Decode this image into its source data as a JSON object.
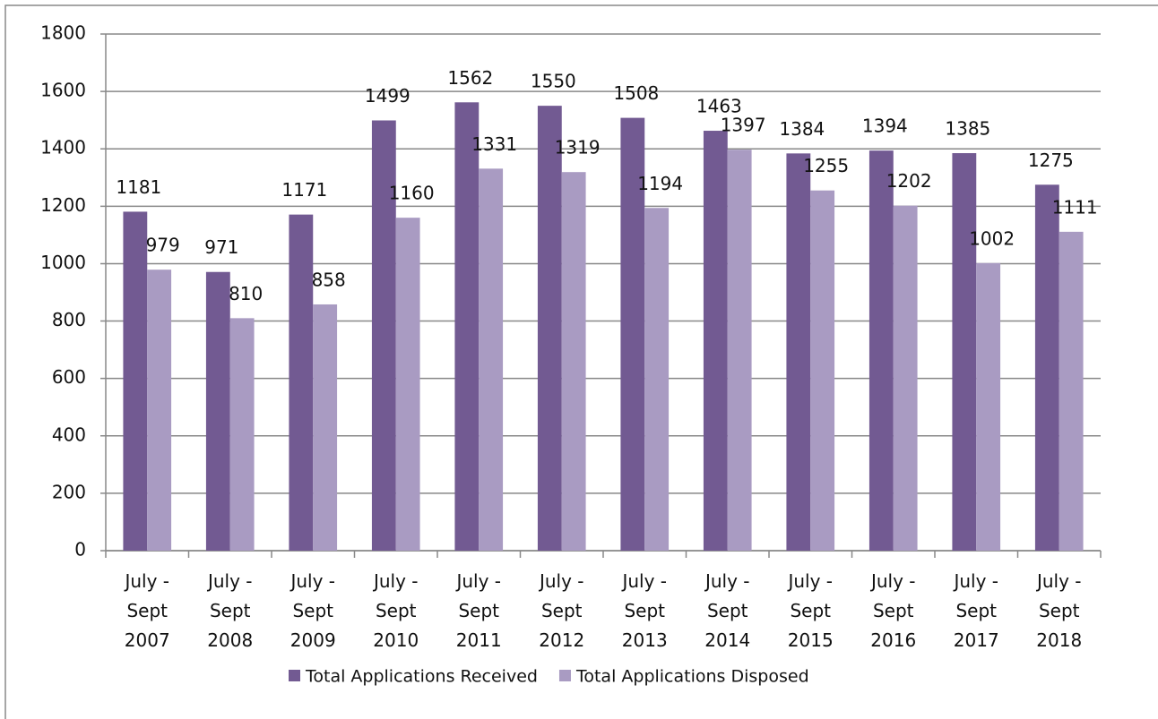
{
  "chart_data": {
    "type": "bar",
    "categories": [
      "July - Sept 2007",
      "July - Sept 2008",
      "July - Sept 2009",
      "July - Sept 2010",
      "July - Sept 2011",
      "July - Sept 2012",
      "July - Sept 2013",
      "July - Sept 2014",
      "July - Sept 2015",
      "July - Sept 2016",
      "July - Sept 2017",
      "July - Sept 2018"
    ],
    "series": [
      {
        "name": "Total Applications Received",
        "color": "#725a92",
        "values": [
          1181,
          971,
          1171,
          1499,
          1562,
          1550,
          1508,
          1463,
          1384,
          1394,
          1385,
          1275
        ]
      },
      {
        "name": "Total Applications Disposed",
        "color": "#a99bc2",
        "values": [
          979,
          810,
          858,
          1160,
          1331,
          1319,
          1194,
          1397,
          1255,
          1202,
          1002,
          1111
        ]
      }
    ],
    "ylim": [
      0,
      1800
    ],
    "yticks": [
      0,
      200,
      400,
      600,
      800,
      1000,
      1200,
      1400,
      1600,
      1800
    ],
    "grid": true,
    "legend": "bottom"
  }
}
